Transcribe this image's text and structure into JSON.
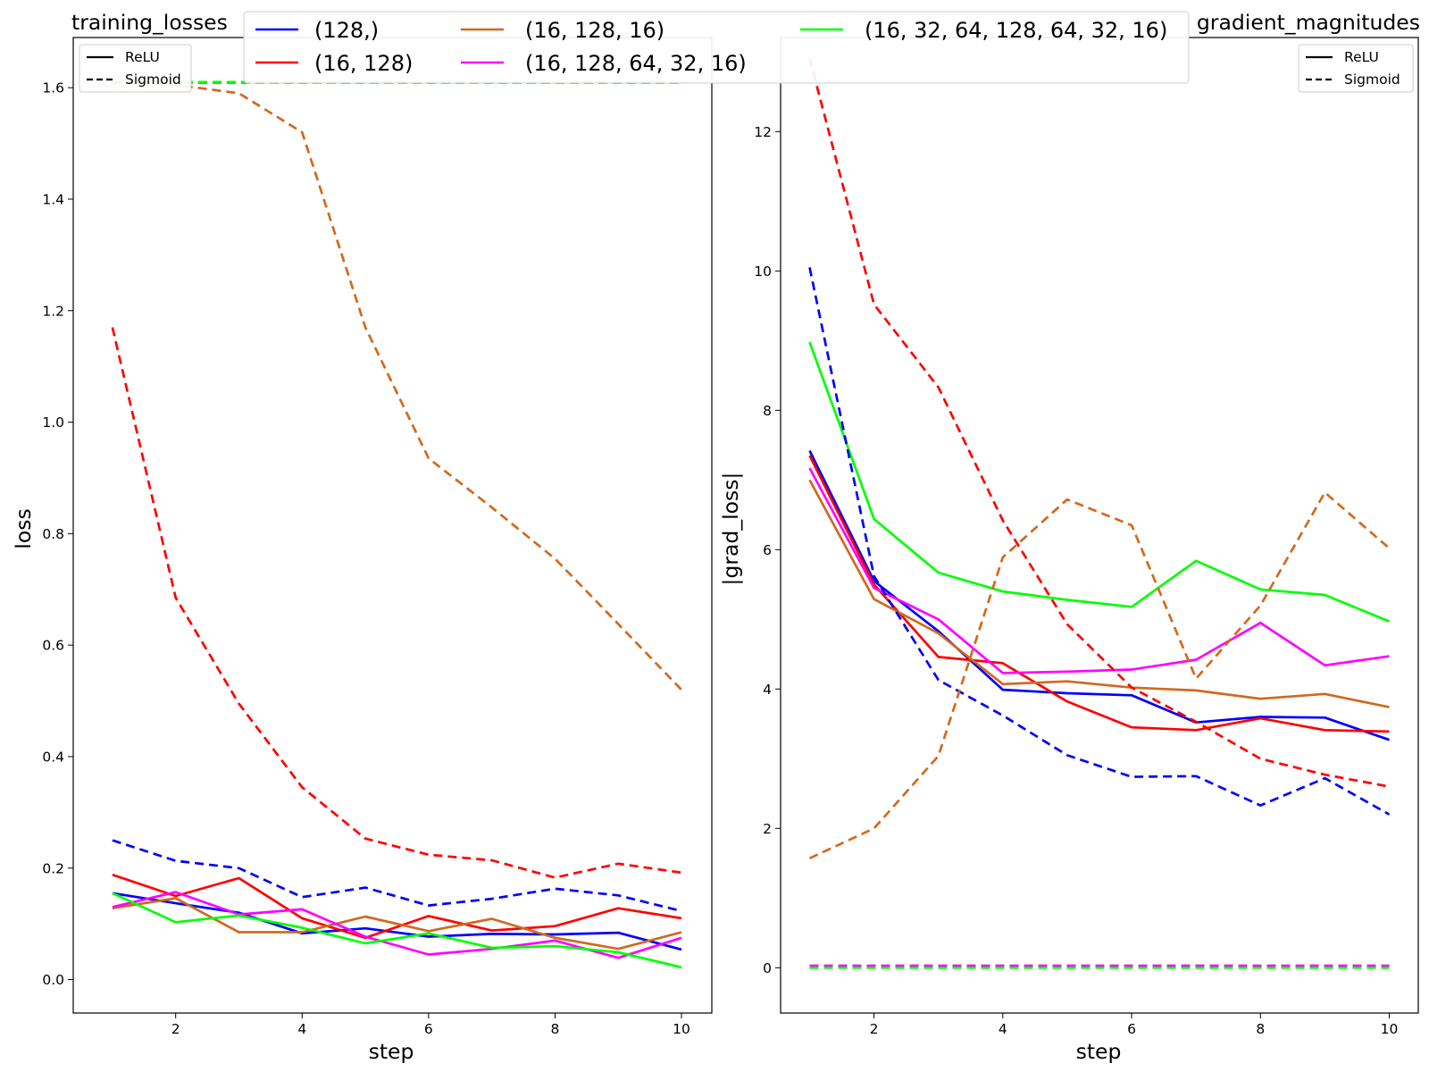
{
  "legend": {
    "series": [
      {
        "label": "(128,)",
        "color": "#0000ff"
      },
      {
        "label": "(16, 128)",
        "color": "#ff0000"
      },
      {
        "label": "(16, 128, 16)",
        "color": "#d2691e"
      },
      {
        "label": "(16, 128, 64, 32, 16)",
        "color": "#ff00ff"
      },
      {
        "label": "(16, 32, 64, 128, 64, 32, 16)",
        "color": "#00ff00"
      }
    ],
    "styles": [
      {
        "label": "ReLU",
        "dash": "solid"
      },
      {
        "label": "Sigmoid",
        "dash": "dashed"
      }
    ]
  },
  "chart_data": [
    {
      "type": "line",
      "title": "training_losses",
      "xlabel": "step",
      "ylabel": "loss",
      "xlim": [
        0.38,
        10.48
      ],
      "ylim": [
        -0.06,
        1.69
      ],
      "xticks": [
        2,
        4,
        6,
        8,
        10
      ],
      "yticks": [
        0.0,
        0.2,
        0.4,
        0.6,
        0.8,
        1.0,
        1.2,
        1.4,
        1.6
      ],
      "ytick_labels": [
        "0.0",
        "0.2",
        "0.4",
        "0.6",
        "0.8",
        "1.0",
        "1.2",
        "1.4",
        "1.6"
      ],
      "legend_position": "top-left",
      "x": [
        1,
        2,
        3,
        4,
        5,
        6,
        7,
        8,
        9,
        10
      ],
      "series": [
        {
          "name": "(128,)",
          "activation": "ReLU",
          "color": "#0000ff",
          "dash": "solid",
          "values": [
            0.155,
            0.137,
            0.12,
            0.083,
            0.092,
            0.077,
            0.082,
            0.081,
            0.084,
            0.054
          ]
        },
        {
          "name": "(16, 128)",
          "activation": "ReLU",
          "color": "#ff0000",
          "dash": "solid",
          "values": [
            0.188,
            0.15,
            0.182,
            0.11,
            0.075,
            0.114,
            0.088,
            0.096,
            0.128,
            0.11
          ]
        },
        {
          "name": "(16, 128, 16)",
          "activation": "ReLU",
          "color": "#d2691e",
          "dash": "solid",
          "values": [
            0.128,
            0.146,
            0.085,
            0.085,
            0.113,
            0.087,
            0.109,
            0.075,
            0.055,
            0.085
          ]
        },
        {
          "name": "(16, 128, 64, 32, 16)",
          "activation": "ReLU",
          "color": "#ff00ff",
          "dash": "solid",
          "values": [
            0.13,
            0.157,
            0.117,
            0.126,
            0.077,
            0.045,
            0.055,
            0.07,
            0.039,
            0.075
          ]
        },
        {
          "name": "(16, 32, 64, 128, 64, 32, 16)",
          "activation": "ReLU",
          "color": "#00ff00",
          "dash": "solid",
          "values": [
            0.155,
            0.103,
            0.115,
            0.093,
            0.065,
            0.083,
            0.057,
            0.06,
            0.049,
            0.022
          ]
        },
        {
          "name": "(128,)",
          "activation": "Sigmoid",
          "color": "#0000ff",
          "dash": "dashed",
          "values": [
            0.25,
            0.213,
            0.2,
            0.148,
            0.165,
            0.133,
            0.145,
            0.163,
            0.151,
            0.123
          ]
        },
        {
          "name": "(16, 128)",
          "activation": "Sigmoid",
          "color": "#ff0000",
          "dash": "dashed",
          "values": [
            1.17,
            0.685,
            0.495,
            0.345,
            0.253,
            0.224,
            0.214,
            0.183,
            0.208,
            0.192
          ]
        },
        {
          "name": "(16, 128, 16)",
          "activation": "Sigmoid",
          "color": "#d2691e",
          "dash": "dashed",
          "values": [
            1.61,
            1.605,
            1.59,
            1.52,
            1.17,
            0.935,
            0.847,
            0.755,
            0.638,
            0.52
          ]
        },
        {
          "name": "(16, 128, 64, 32, 16)",
          "activation": "Sigmoid",
          "color": "#ff00ff",
          "dash": "dashed",
          "values": [
            1.609,
            1.609,
            1.609,
            1.609,
            1.609,
            1.609,
            1.609,
            1.609,
            1.609,
            1.609
          ]
        },
        {
          "name": "(16, 32, 64, 128, 64, 32, 16)",
          "activation": "Sigmoid",
          "color": "#00ff00",
          "dash": "dashed",
          "values": [
            1.61,
            1.61,
            1.61,
            1.61,
            1.61,
            1.61,
            1.61,
            1.61,
            1.61,
            1.61
          ]
        }
      ]
    },
    {
      "type": "line",
      "title": "gradient_magnitudes",
      "xlabel": "step",
      "ylabel": "|grad_loss|",
      "xlim": [
        0.55,
        10.45
      ],
      "ylim": [
        -0.65,
        13.35
      ],
      "xticks": [
        2,
        4,
        6,
        8,
        10
      ],
      "yticks": [
        0,
        2,
        4,
        6,
        8,
        10,
        12
      ],
      "ytick_labels": [
        "0",
        "2",
        "4",
        "6",
        "8",
        "10",
        "12"
      ],
      "legend_position": "top-right",
      "x": [
        1,
        2,
        3,
        4,
        5,
        6,
        7,
        8,
        9,
        10
      ],
      "series": [
        {
          "name": "(128,)",
          "activation": "ReLU",
          "color": "#0000ff",
          "dash": "solid",
          "values": [
            7.42,
            5.55,
            4.83,
            3.99,
            3.94,
            3.91,
            3.52,
            3.6,
            3.59,
            3.27
          ]
        },
        {
          "name": "(16, 128)",
          "activation": "ReLU",
          "color": "#ff0000",
          "dash": "solid",
          "values": [
            7.35,
            5.5,
            4.46,
            4.37,
            3.82,
            3.45,
            3.41,
            3.58,
            3.41,
            3.39
          ]
        },
        {
          "name": "(16, 128, 16)",
          "activation": "ReLU",
          "color": "#d2691e",
          "dash": "solid",
          "values": [
            7.0,
            5.29,
            4.8,
            4.07,
            4.11,
            4.02,
            3.98,
            3.86,
            3.93,
            3.74
          ]
        },
        {
          "name": "(16, 128, 64, 32, 16)",
          "activation": "ReLU",
          "color": "#ff00ff",
          "dash": "solid",
          "values": [
            7.17,
            5.45,
            5.0,
            4.23,
            4.25,
            4.28,
            4.42,
            4.95,
            4.34,
            4.47
          ]
        },
        {
          "name": "(16, 32, 64, 128, 64, 32, 16)",
          "activation": "ReLU",
          "color": "#00ff00",
          "dash": "solid",
          "values": [
            8.98,
            6.44,
            5.67,
            5.4,
            5.28,
            5.18,
            5.84,
            5.43,
            5.35,
            4.97
          ]
        },
        {
          "name": "(128,)",
          "activation": "Sigmoid",
          "color": "#0000ff",
          "dash": "dashed",
          "values": [
            10.05,
            5.62,
            4.13,
            3.62,
            3.05,
            2.74,
            2.75,
            2.33,
            2.72,
            2.2
          ]
        },
        {
          "name": "(16, 128)",
          "activation": "Sigmoid",
          "color": "#ff0000",
          "dash": "dashed",
          "values": [
            13.05,
            9.52,
            8.33,
            6.42,
            4.93,
            4.02,
            3.53,
            3.0,
            2.77,
            2.6
          ]
        },
        {
          "name": "(16, 128, 16)",
          "activation": "Sigmoid",
          "color": "#d2691e",
          "dash": "dashed",
          "values": [
            1.57,
            2.0,
            3.04,
            5.89,
            6.72,
            6.35,
            4.15,
            5.2,
            6.82,
            6.02
          ]
        },
        {
          "name": "(16, 128, 64, 32, 16)",
          "activation": "Sigmoid",
          "color": "#ff00ff",
          "dash": "dashed",
          "values": [
            0.03,
            0.03,
            0.03,
            0.03,
            0.03,
            0.03,
            0.03,
            0.03,
            0.03,
            0.03
          ]
        },
        {
          "name": "(16, 32, 64, 128, 64, 32, 16)",
          "activation": "Sigmoid",
          "color": "#00ff00",
          "dash": "dashed",
          "values": [
            0.0,
            0.0,
            0.0,
            0.0,
            0.0,
            0.0,
            0.0,
            0.0,
            0.0,
            0.0
          ]
        }
      ]
    }
  ]
}
